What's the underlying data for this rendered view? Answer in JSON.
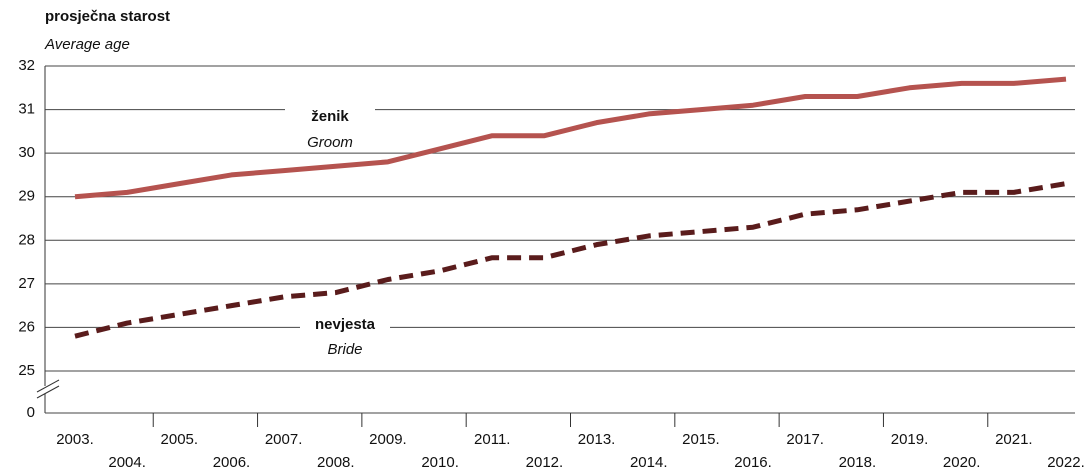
{
  "chart_data": {
    "type": "line",
    "title": "prosječna starost",
    "subtitle": "Average age",
    "categories": [
      "2003.",
      "2004.",
      "2005.",
      "2006.",
      "2007.",
      "2008.",
      "2009.",
      "2010.",
      "2011.",
      "2012.",
      "2013.",
      "2014.",
      "2015.",
      "2016.",
      "2017.",
      "2018.",
      "2019.",
      "2020.",
      "2021.",
      "2022."
    ],
    "series": [
      {
        "name": "ženik",
        "name_en": "Groom",
        "color": "#b5534f",
        "dashed": false,
        "values": [
          29.0,
          29.1,
          29.3,
          29.5,
          29.6,
          29.7,
          29.8,
          30.1,
          30.4,
          30.4,
          30.7,
          30.9,
          31.0,
          31.1,
          31.3,
          31.3,
          31.5,
          31.6,
          31.6,
          31.7
        ]
      },
      {
        "name": "nevjesta",
        "name_en": "Bride",
        "color": "#5a1c1c",
        "dashed": true,
        "values": [
          25.8,
          26.1,
          26.3,
          26.5,
          26.7,
          26.8,
          27.1,
          27.3,
          27.6,
          27.6,
          27.9,
          28.1,
          28.2,
          28.3,
          28.6,
          28.7,
          28.9,
          29.1,
          29.1,
          29.3
        ]
      }
    ],
    "ylim": [
      0,
      32
    ],
    "yticks": [
      0,
      25,
      26,
      27,
      28,
      29,
      30,
      31,
      32
    ],
    "axis_break": true,
    "grid": true
  }
}
